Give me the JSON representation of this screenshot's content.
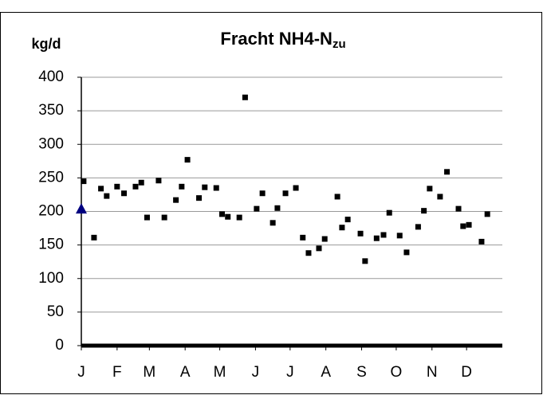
{
  "chart_data": {
    "type": "scatter",
    "title": "Fracht NH4-N",
    "title_subscript": "zu",
    "ylabel": "kg/d",
    "xlim": [
      1,
      366
    ],
    "xticks": [
      {
        "value": 1,
        "label": "J"
      },
      {
        "value": 32,
        "label": "F"
      },
      {
        "value": 60,
        "label": "M"
      },
      {
        "value": 91,
        "label": "A"
      },
      {
        "value": 121,
        "label": "M"
      },
      {
        "value": 152,
        "label": "J"
      },
      {
        "value": 182,
        "label": "J"
      },
      {
        "value": 213,
        "label": "A"
      },
      {
        "value": 244,
        "label": "S"
      },
      {
        "value": 274,
        "label": "O"
      },
      {
        "value": 305,
        "label": "N"
      },
      {
        "value": 335,
        "label": "D"
      }
    ],
    "ylim": [
      0,
      400
    ],
    "yticks": [
      0,
      50,
      100,
      150,
      200,
      250,
      300,
      350,
      400
    ],
    "grid": true,
    "series": [
      {
        "color": "#000000",
        "marker": "square",
        "x": [
          3,
          12,
          18,
          23,
          32,
          38,
          48,
          53,
          58,
          68,
          73,
          83,
          88,
          93,
          103,
          108,
          118,
          123,
          128,
          138,
          143,
          153,
          158,
          167,
          171,
          178,
          187,
          193,
          198,
          207,
          212,
          223,
          227,
          232,
          243,
          247,
          257,
          263,
          268,
          277,
          283,
          293,
          298,
          303,
          312,
          318,
          328,
          332,
          337,
          348,
          353
        ],
        "values": [
          245,
          161,
          234,
          223,
          237,
          227,
          237,
          243,
          191,
          246,
          191,
          217,
          237,
          277,
          220,
          236,
          235,
          196,
          192,
          191,
          370,
          204,
          227,
          183,
          205,
          227,
          235,
          161,
          138,
          145,
          159,
          222,
          176,
          188,
          167,
          126,
          160,
          165,
          198,
          164,
          139,
          177,
          201,
          234,
          222,
          259,
          204,
          178,
          180,
          155,
          196
        ]
      },
      {
        "color": "#000080",
        "marker": "triangle",
        "x": [
          1
        ],
        "values": [
          204
        ]
      }
    ]
  }
}
